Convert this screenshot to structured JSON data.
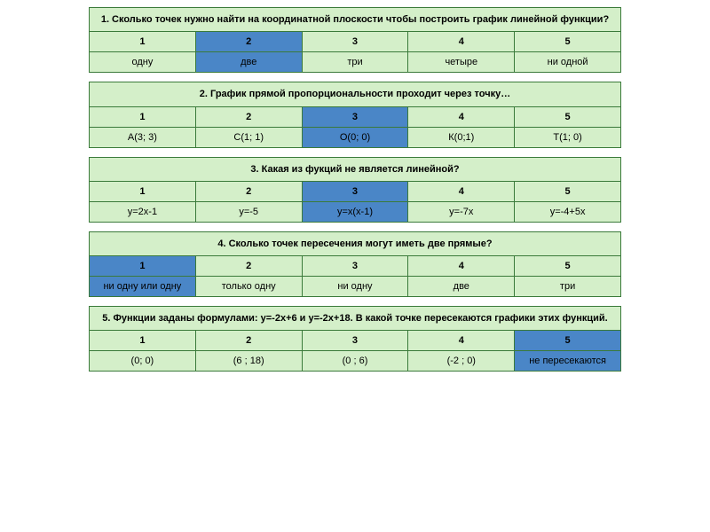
{
  "colors": {
    "green": "#d4efc9",
    "blue": "#4a86c7",
    "border": "#3a7a3a",
    "background": "#ffffff"
  },
  "numbers": [
    "1",
    "2",
    "3",
    "4",
    "5"
  ],
  "questions": [
    {
      "text": "1. Сколько точек нужно найти на координатной плоскости чтобы построить график линейной функции?",
      "answers": [
        "одну",
        "две",
        "три",
        "четыре",
        "ни одной"
      ],
      "highlight": 1
    },
    {
      "text": "2. График прямой пропорциональности проходит через точку…",
      "answers": [
        "А(3; 3)",
        "С(1; 1)",
        "О(0; 0)",
        "К(0;1)",
        "Т(1; 0)"
      ],
      "highlight": 2
    },
    {
      "text": "3. Какая из фукций не является линейной?",
      "answers": [
        "y=2x-1",
        "y=-5",
        "y=x(x-1)",
        "y=-7x",
        "y=-4+5x"
      ],
      "highlight": 2
    },
    {
      "text": "4.  Сколько точек пересечения могут иметь две прямые?",
      "answers": [
        "ни одну или одну",
        "только одну",
        "ни одну",
        "две",
        "три"
      ],
      "highlight": 0
    },
    {
      "text": "5. Функции заданы формулами: у=-2х+6  и  у=-2х+18. В какой точке пересекаются графики этих функций.",
      "answers": [
        "(0; 0)",
        "(6 ; 18)",
        "(0 ; 6)",
        "(-2 ; 0)",
        "не пересекаются"
      ],
      "highlight": 4
    }
  ]
}
